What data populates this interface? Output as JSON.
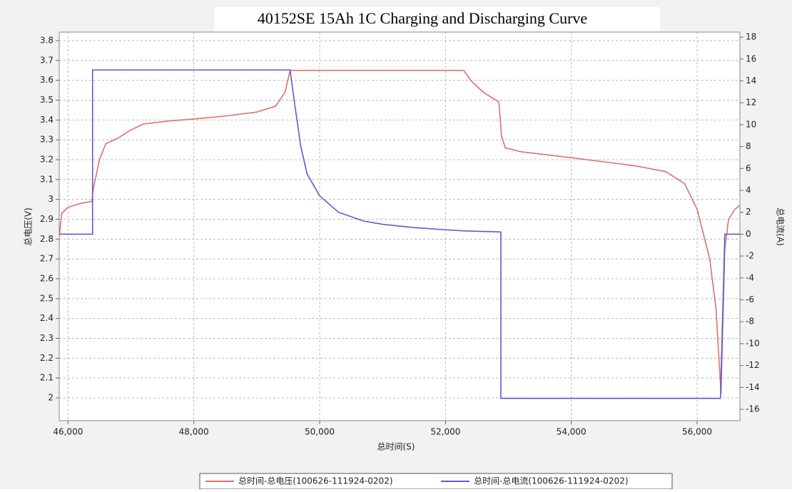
{
  "chart_data": {
    "type": "line",
    "title": "40152SE 15Ah 1C Charging and Discharging Curve",
    "x_label": "总时间(S)",
    "y_label": "总电压(V)",
    "y2_label": "总电流(A)",
    "xlim": [
      45860,
      56680
    ],
    "xticks": [
      {
        "value": 46000,
        "label": "46,000"
      },
      {
        "value": 48000,
        "label": "48,000"
      },
      {
        "value": 50000,
        "label": "50,000"
      },
      {
        "value": 52000,
        "label": "52,000"
      },
      {
        "value": 54000,
        "label": "54,000"
      },
      {
        "value": 56000,
        "label": "56,000"
      }
    ],
    "ylim": [
      1.885,
      3.843
    ],
    "yticks": [
      2,
      2.1,
      2.2,
      2.3,
      2.4,
      2.5,
      2.6,
      2.7,
      2.8,
      2.9,
      3,
      3.1,
      3.2,
      3.3,
      3.4,
      3.5,
      3.6,
      3.7,
      3.8
    ],
    "y2lim": [
      -17.04,
      18.46
    ],
    "y2ticks": [
      -16,
      -14,
      -12,
      -10,
      -8,
      -6,
      -4,
      -2,
      0,
      2,
      4,
      6,
      8,
      10,
      12,
      14,
      16,
      18
    ],
    "grid": true,
    "legend": "bottom",
    "series": [
      {
        "name": "总时间-总电压(100626-111924-0202)",
        "color": "#e0706a",
        "axis": "y",
        "x": [
          45864,
          45900,
          46000,
          46200,
          46380,
          46400,
          46500,
          46600,
          46800,
          47000,
          47200,
          47600,
          48000,
          48500,
          49000,
          49300,
          49450,
          49530,
          50000,
          52000,
          52290,
          52400,
          52600,
          52850,
          52890,
          52950,
          53200,
          54000,
          54500,
          55000,
          55500,
          55800,
          56000,
          56200,
          56300,
          56380,
          56440,
          56500,
          56600,
          56680
        ],
        "values": [
          2.82,
          2.93,
          2.96,
          2.98,
          2.99,
          3.05,
          3.2,
          3.28,
          3.31,
          3.35,
          3.38,
          3.395,
          3.405,
          3.42,
          3.44,
          3.47,
          3.54,
          3.65,
          3.65,
          3.65,
          3.65,
          3.6,
          3.54,
          3.49,
          3.32,
          3.26,
          3.24,
          3.21,
          3.19,
          3.17,
          3.14,
          3.08,
          2.95,
          2.7,
          2.45,
          2.02,
          2.75,
          2.9,
          2.95,
          2.97
        ]
      },
      {
        "name": "总时间-总电流(100626-111924-0202)",
        "color": "#5b5bd6",
        "axis": "y2",
        "x": [
          45864,
          46390,
          46390,
          49530,
          49600,
          49700,
          49800,
          50000,
          50300,
          50700,
          51000,
          51500,
          52000,
          52300,
          52880,
          52880,
          56370,
          56440,
          56680
        ],
        "values": [
          0,
          0,
          15,
          15,
          12,
          8,
          5.5,
          3.5,
          2,
          1.2,
          0.9,
          0.6,
          0.4,
          0.3,
          0.2,
          -15,
          -15,
          0,
          0
        ]
      }
    ]
  }
}
